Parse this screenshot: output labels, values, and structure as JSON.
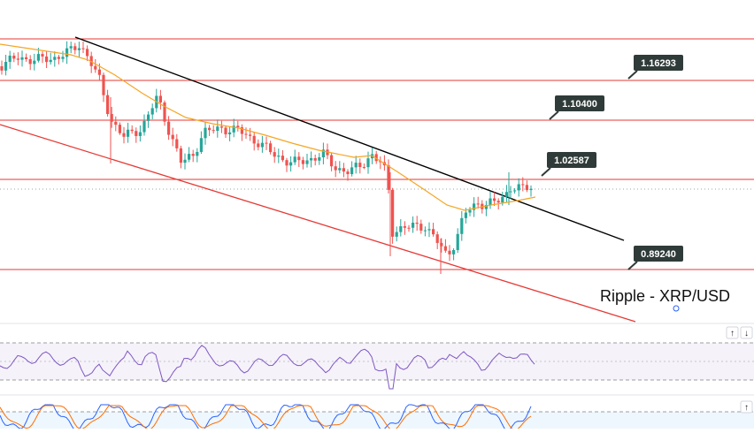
{
  "chart_data": {
    "type": "candlestick",
    "title": "Ripple - XRP/USD",
    "colors": {
      "up": "#26a69a",
      "down": "#ef5350",
      "level_line": "#e53935",
      "trendline": "#000000",
      "channel_line": "#e53935",
      "moving_average": "#f5a623",
      "label_bg": "#2f3b38",
      "label_text": "#ffffff",
      "rsi": "#7e57c2",
      "stoch_k": "#2962ff",
      "stoch_d": "#ff6d00"
    },
    "levels": [
      {
        "value": 1.16293,
        "label": "1.16293"
      },
      {
        "value": 1.104,
        "label": "1.10400"
      },
      {
        "value": 1.02587,
        "label": "1.02587"
      },
      {
        "value": 0.8924,
        "label": "0.89240"
      }
    ],
    "price_range": [
      0.8,
      1.225
    ],
    "annotations": [
      "descending trendline",
      "descending channel support",
      "moving average"
    ],
    "grid": false,
    "indicators": [
      {
        "name": "RSI",
        "bands": [
          70,
          30
        ]
      },
      {
        "name": "Stochastic"
      }
    ]
  },
  "ui": {
    "scroll_up_icon": "↑",
    "scroll_down_icon": "↓",
    "expand_up_icon": "↑"
  }
}
